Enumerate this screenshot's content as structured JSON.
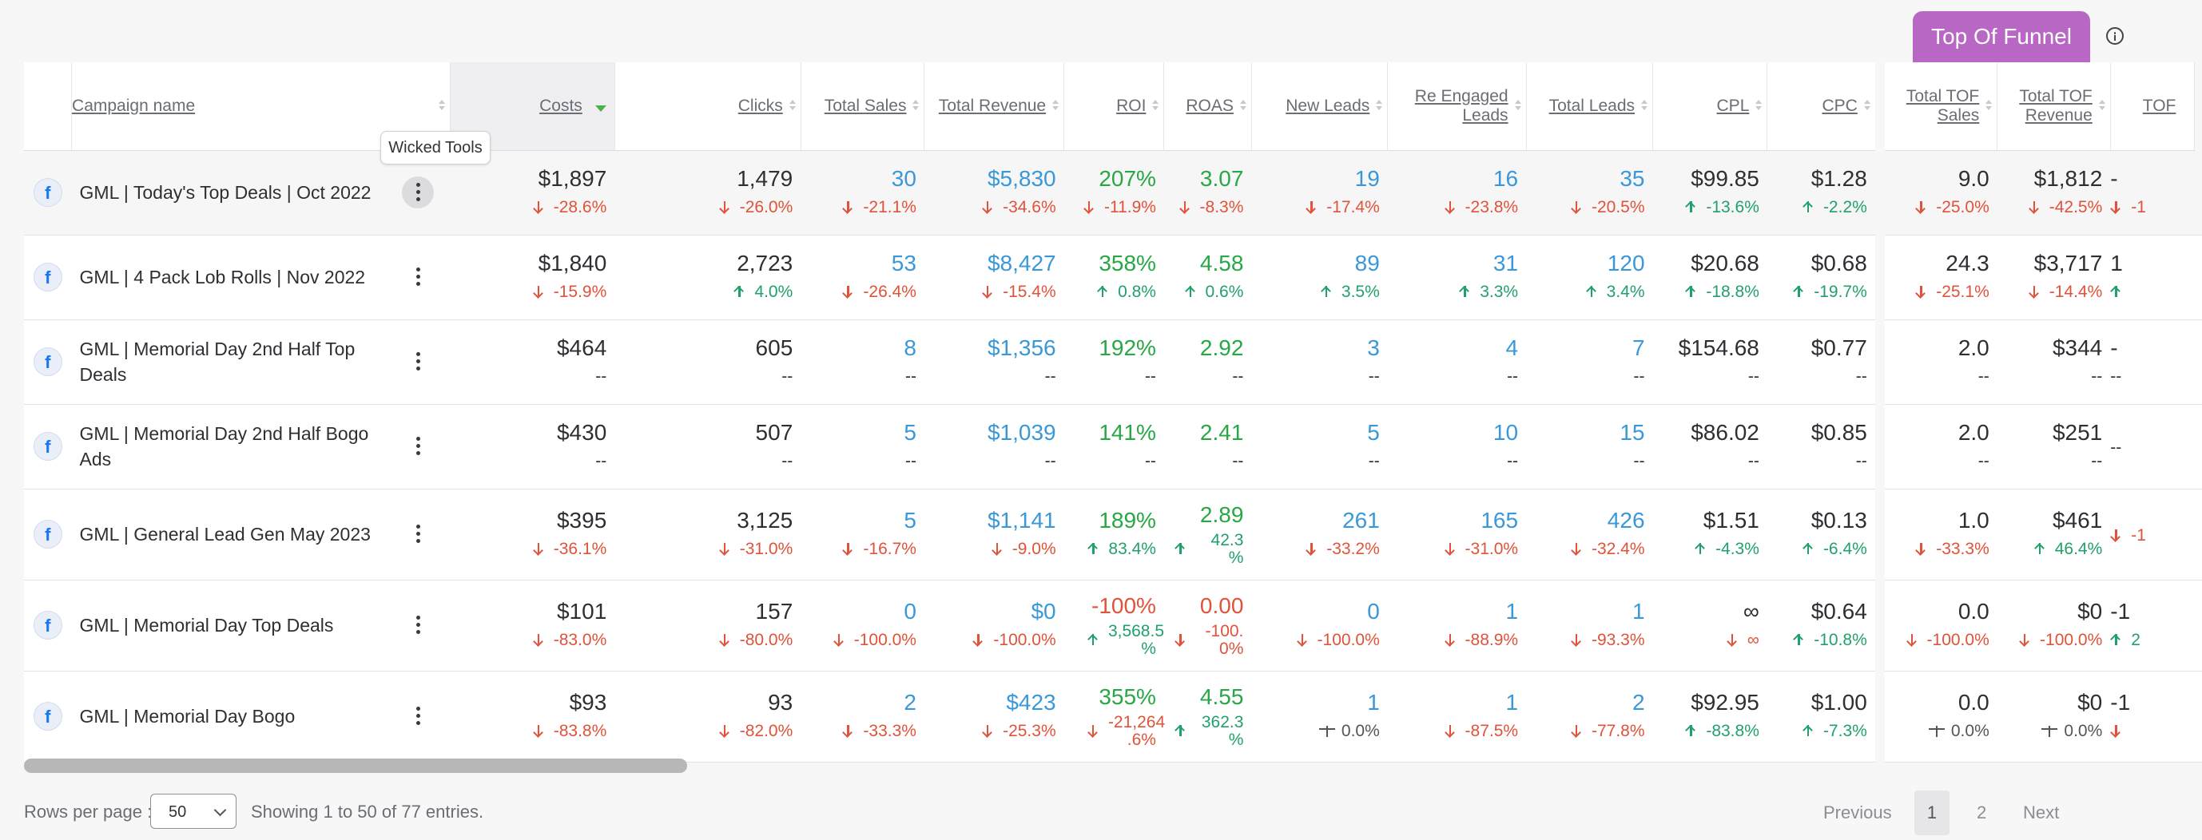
{
  "tabs": {
    "top_of_funnel": "Top Of Funnel"
  },
  "tooltip": "Wicked Tools",
  "columns": [
    "Campaign name",
    "Costs",
    "Clicks",
    "Total Sales",
    "Total Revenue",
    "ROI",
    "ROAS",
    "New Leads",
    "Re Engaged Leads",
    "Total Leads",
    "CPL",
    "CPC",
    "Total TOF Sales",
    "Total TOF Revenue",
    "TOF"
  ],
  "rows": [
    {
      "name": "GML | Today's Top Deals | Oct 2022",
      "cells": [
        [
          "$1,897",
          "-28.6%",
          "down"
        ],
        [
          "1,479",
          "-26.0%",
          "down"
        ],
        [
          "30",
          "-21.1%",
          "down"
        ],
        [
          "$5,830",
          "-34.6%",
          "down"
        ],
        [
          "207%",
          "-11.9%",
          "down"
        ],
        [
          "3.07",
          "-8.3%",
          "down"
        ],
        [
          "19",
          "-17.4%",
          "down"
        ],
        [
          "16",
          "-23.8%",
          "down"
        ],
        [
          "35",
          "-20.5%",
          "down"
        ],
        [
          "$99.85",
          "-13.6%",
          "up"
        ],
        [
          "$1.28",
          "-2.2%",
          "up"
        ],
        [
          "9.0",
          "-25.0%",
          "down"
        ],
        [
          "$1,812",
          "-42.5%",
          "down"
        ],
        [
          "-",
          "-1",
          "down"
        ]
      ]
    },
    {
      "name": "GML | 4 Pack Lob Rolls | Nov 2022",
      "cells": [
        [
          "$1,840",
          "-15.9%",
          "down"
        ],
        [
          "2,723",
          "4.0%",
          "up"
        ],
        [
          "53",
          "-26.4%",
          "down"
        ],
        [
          "$8,427",
          "-15.4%",
          "down"
        ],
        [
          "358%",
          "0.8%",
          "up"
        ],
        [
          "4.58",
          "0.6%",
          "up"
        ],
        [
          "89",
          "3.5%",
          "up"
        ],
        [
          "31",
          "3.3%",
          "up"
        ],
        [
          "120",
          "3.4%",
          "up"
        ],
        [
          "$20.68",
          "-18.8%",
          "up"
        ],
        [
          "$0.68",
          "-19.7%",
          "up"
        ],
        [
          "24.3",
          "-25.1%",
          "down"
        ],
        [
          "$3,717",
          "-14.4%",
          "down"
        ],
        [
          "1",
          "",
          "up"
        ]
      ]
    },
    {
      "name": "GML | Memorial Day 2nd Half Top Deals",
      "cells": [
        [
          "$464",
          "--",
          "none"
        ],
        [
          "605",
          "--",
          "none"
        ],
        [
          "8",
          "--",
          "none"
        ],
        [
          "$1,356",
          "--",
          "none"
        ],
        [
          "192%",
          "--",
          "none"
        ],
        [
          "2.92",
          "--",
          "none"
        ],
        [
          "3",
          "--",
          "none"
        ],
        [
          "4",
          "--",
          "none"
        ],
        [
          "7",
          "--",
          "none"
        ],
        [
          "$154.68",
          "--",
          "none"
        ],
        [
          "$0.77",
          "--",
          "none"
        ],
        [
          "2.0",
          "--",
          "none"
        ],
        [
          "$344",
          "--",
          "none"
        ],
        [
          "-",
          "--",
          "none"
        ]
      ]
    },
    {
      "name": "GML | Memorial Day 2nd Half Bogo Ads",
      "cells": [
        [
          "$430",
          "--",
          "none"
        ],
        [
          "507",
          "--",
          "none"
        ],
        [
          "5",
          "--",
          "none"
        ],
        [
          "$1,039",
          "--",
          "none"
        ],
        [
          "141%",
          "--",
          "none"
        ],
        [
          "2.41",
          "--",
          "none"
        ],
        [
          "5",
          "--",
          "none"
        ],
        [
          "10",
          "--",
          "none"
        ],
        [
          "15",
          "--",
          "none"
        ],
        [
          "$86.02",
          "--",
          "none"
        ],
        [
          "$0.85",
          "--",
          "none"
        ],
        [
          "2.0",
          "--",
          "none"
        ],
        [
          "$251",
          "--",
          "none"
        ],
        [
          "",
          "--",
          "none"
        ]
      ]
    },
    {
      "name": "GML | General Lead Gen May 2023",
      "cells": [
        [
          "$395",
          "-36.1%",
          "down"
        ],
        [
          "3,125",
          "-31.0%",
          "down"
        ],
        [
          "5",
          "-16.7%",
          "down"
        ],
        [
          "$1,141",
          "-9.0%",
          "down"
        ],
        [
          "189%",
          "83.4%",
          "up"
        ],
        [
          "2.89",
          "42.3 %",
          "up"
        ],
        [
          "261",
          "-33.2%",
          "down"
        ],
        [
          "165",
          "-31.0%",
          "down"
        ],
        [
          "426",
          "-32.4%",
          "down"
        ],
        [
          "$1.51",
          "-4.3%",
          "up"
        ],
        [
          "$0.13",
          "-6.4%",
          "up"
        ],
        [
          "1.0",
          "-33.3%",
          "down"
        ],
        [
          "$461",
          "46.4%",
          "up"
        ],
        [
          "",
          "-1",
          "down"
        ]
      ]
    },
    {
      "name": "GML | Memorial Day Top Deals",
      "cells": [
        [
          "$101",
          "-83.0%",
          "down"
        ],
        [
          "157",
          "-80.0%",
          "down"
        ],
        [
          "0",
          "-100.0%",
          "down"
        ],
        [
          "$0",
          "-100.0%",
          "down"
        ],
        [
          "-100%",
          "3,568.5 %",
          "up"
        ],
        [
          "0.00",
          "-100. 0%",
          "down"
        ],
        [
          "0",
          "-100.0%",
          "down"
        ],
        [
          "1",
          "-88.9%",
          "down"
        ],
        [
          "1",
          "-93.3%",
          "down"
        ],
        [
          "∞",
          "∞",
          "down"
        ],
        [
          "$0.64",
          "-10.8%",
          "up"
        ],
        [
          "0.0",
          "-100.0%",
          "down"
        ],
        [
          "$0",
          "-100.0%",
          "down"
        ],
        [
          "-1",
          "2",
          "up"
        ]
      ]
    },
    {
      "name": "GML | Memorial Day Bogo",
      "cells": [
        [
          "$93",
          "-83.8%",
          "down"
        ],
        [
          "93",
          "-82.0%",
          "down"
        ],
        [
          "2",
          "-33.3%",
          "down"
        ],
        [
          "$423",
          "-25.3%",
          "down"
        ],
        [
          "355%",
          "-21,264 .6%",
          "down"
        ],
        [
          "4.55",
          "362.3 %",
          "up"
        ],
        [
          "1",
          "0.0%",
          "neutral"
        ],
        [
          "1",
          "-87.5%",
          "down"
        ],
        [
          "2",
          "-77.8%",
          "down"
        ],
        [
          "$92.95",
          "-83.8%",
          "up"
        ],
        [
          "$1.00",
          "-7.3%",
          "up"
        ],
        [
          "0.0",
          "0.0%",
          "neutral"
        ],
        [
          "$0",
          "0.0%",
          "neutral"
        ],
        [
          "-1",
          "",
          "down"
        ]
      ]
    }
  ],
  "footer": {
    "rows_per_page_label": "Rows per page :",
    "rows_per_page_value": "50",
    "showing": "Showing 1 to 50 of 77 entries.",
    "prev": "Previous",
    "page1": "1",
    "page2": "2",
    "next": "Next"
  },
  "colors": {
    "accent": "#b868c4",
    "blue": "#3a98d8",
    "green": "#28a745",
    "red": "#e0523a"
  }
}
